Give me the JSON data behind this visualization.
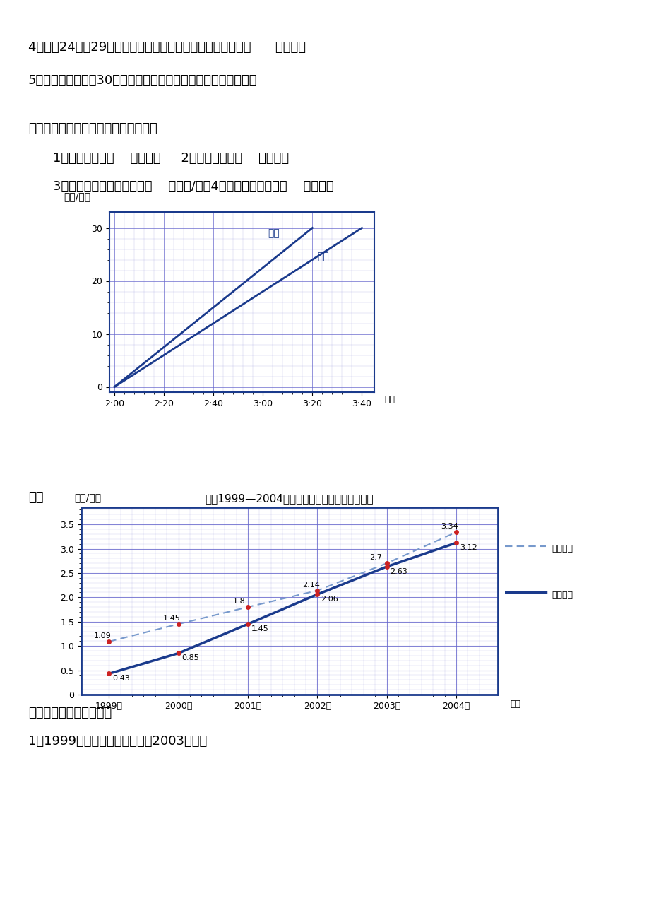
{
  "page_bg": "#ffffff",
  "text_color": "#000000",
  "blue_color": "#1a3a8c",
  "dark_blue": "#2244aa",
  "grid_color": "#6666cc",
  "texts_top": [
    "4、从第24届～29届奥运会，中国获得的奥运金牌数整体呈（      ）趋势。",
    "5、请你预测一下第30届伦敦奥运会，中国可能获得多少枚金牌？"
  ],
  "texts_mid": [
    "六、根据甲、乙两车的行程图表填空。",
    "1、甲车时速是（    ）千米。     2、乙车时速是（    ）千米。",
    "3、甲、乙两车时速之差是（    ）千米/时。4、半小时两车相距（    ）千米。"
  ],
  "chart1": {
    "ylabel": "距离/千米",
    "xlabel": "时间",
    "x_ticks": [
      "2:00",
      "2:20",
      "2:40",
      "3:00",
      "3:20",
      "3:40"
    ],
    "y_ticks": [
      0,
      10,
      20,
      30
    ],
    "label1": "甲车",
    "label2": "乙车",
    "color": "#1a3a8c"
  },
  "section7_label": "七、",
  "chart2": {
    "title": "我国1999—2004年两种电话用户增长情况统计图",
    "ylabel": "数量/亿户",
    "xlabel": "年份",
    "legend1": "固定电话",
    "legend2": "移动电话",
    "years": [
      1999,
      2000,
      2001,
      2002,
      2003,
      2004
    ],
    "fixed_values": [
      1.09,
      1.45,
      1.8,
      2.14,
      2.7,
      3.34
    ],
    "mobile_values": [
      0.43,
      0.85,
      1.45,
      2.06,
      2.63,
      3.12
    ],
    "y_ticks": [
      0,
      0.5,
      1.0,
      1.5,
      2.0,
      2.5,
      3.0,
      3.5
    ],
    "fixed_color": "#7799cc",
    "mobile_color": "#1a3a8c",
    "dot_color": "#cc2222"
  },
  "bottom_texts": [
    "根据上图回答下列问题。",
    "1、1999年哪种电话的用户多？2003年呢？"
  ]
}
